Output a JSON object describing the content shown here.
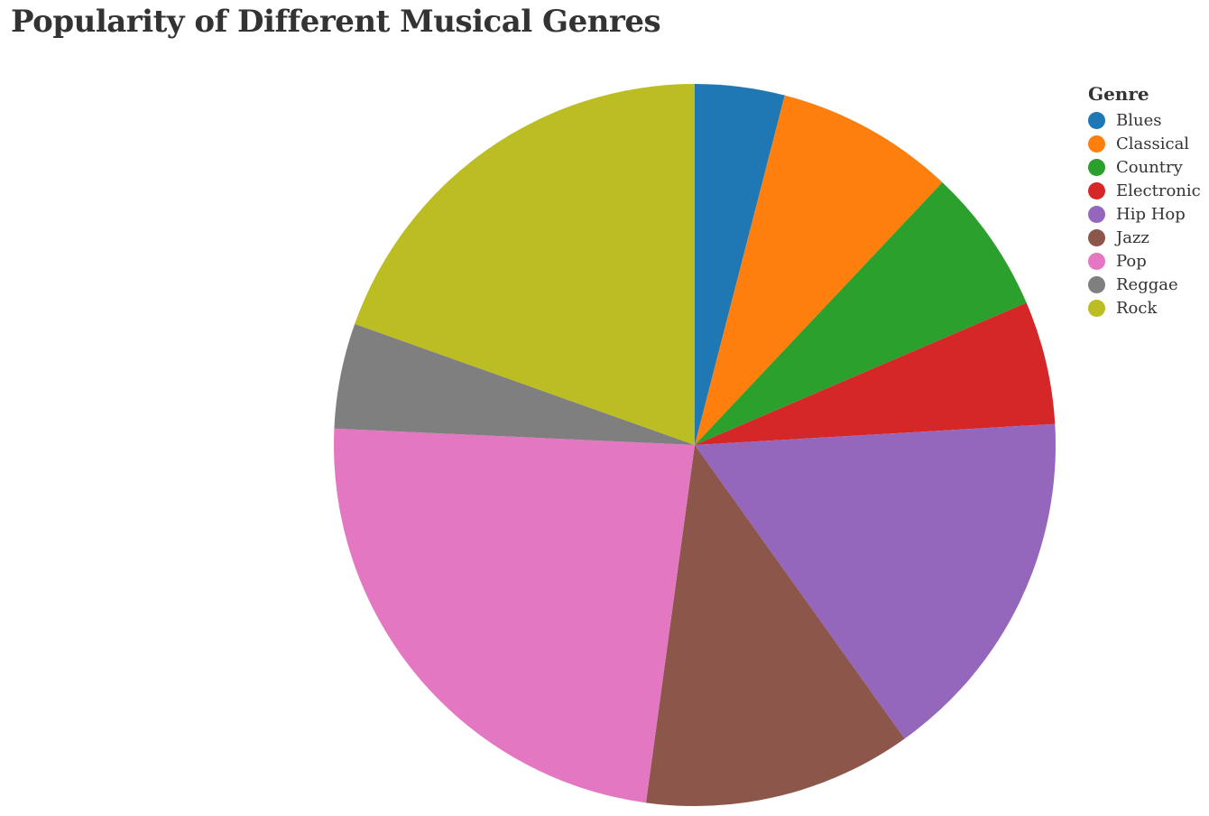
{
  "title": "Popularity of Different Musical Genres",
  "legend": {
    "title": "Genre",
    "placement": "top-right"
  },
  "chart_data": {
    "type": "pie",
    "title": "Popularity of Different Musical Genres",
    "legend_title": "Genre",
    "legend_placement": "top-right",
    "slices": [
      {
        "label": "Blues",
        "value": 4,
        "color": "#1f77b4"
      },
      {
        "label": "Classical",
        "value": 8,
        "color": "#ff7f0e"
      },
      {
        "label": "Country",
        "value": 6.5,
        "color": "#2ca02c"
      },
      {
        "label": "Electronic",
        "value": 5.5,
        "color": "#d62728"
      },
      {
        "label": "Hip Hop",
        "value": 16,
        "color": "#9467bd"
      },
      {
        "label": "Jazz",
        "value": 12,
        "color": "#8c564b"
      },
      {
        "label": "Pop",
        "value": 23.5,
        "color": "#e377c2"
      },
      {
        "label": "Reggae",
        "value": 4.7,
        "color": "#7f7f7f"
      },
      {
        "label": "Rock",
        "value": 19.5,
        "color": "#bcbd22"
      }
    ]
  }
}
